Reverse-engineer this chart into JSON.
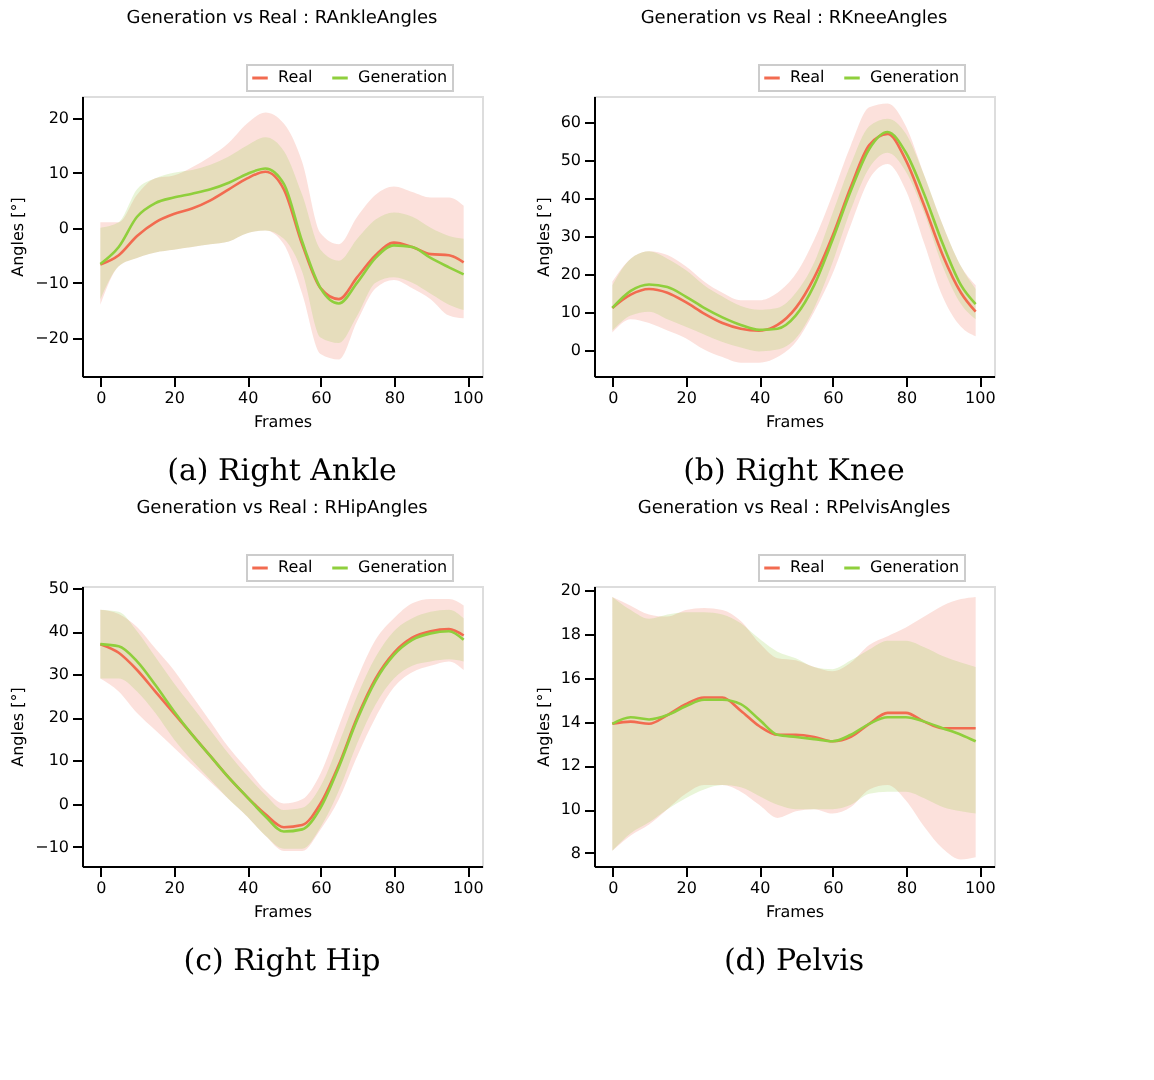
{
  "chart_data": [
    {
      "type": "line",
      "title": "Generation vs Real : RAnkleAngles",
      "xlabel": "Frames",
      "ylabel": "Angles [°]",
      "annotations": [
        "(a) Right Ankle"
      ],
      "legend": "top right",
      "grid": false,
      "x": [
        0,
        5,
        10,
        15,
        20,
        25,
        30,
        35,
        40,
        45,
        50,
        55,
        60,
        65,
        70,
        75,
        80,
        85,
        90,
        95,
        99
      ],
      "xlim": [
        -5,
        104
      ],
      "xticks": [
        0,
        20,
        40,
        60,
        80,
        100
      ],
      "ylim": [
        -27,
        24
      ],
      "yticks": [
        -20,
        -10,
        0,
        10,
        20
      ],
      "series": [
        {
          "name": "Real",
          "color": "#f26b50",
          "values": [
            -6.7,
            -5,
            -1.5,
            1,
            2.5,
            3.5,
            5,
            7,
            9,
            10.2,
            7,
            -3,
            -11,
            -13,
            -9,
            -5,
            -2.7,
            -3.5,
            -4.8,
            -5,
            -6.3
          ],
          "lower": [
            -14,
            -7,
            -5.5,
            -4.5,
            -4,
            -3.5,
            -3,
            -2.5,
            -1,
            -0.5,
            -3,
            -12,
            -23,
            -24,
            -17,
            -11,
            -9.5,
            -11,
            -13,
            -16,
            -16.5
          ],
          "upper": [
            1,
            1,
            6,
            9,
            9.5,
            11,
            13,
            15.5,
            19,
            21,
            19,
            12,
            -1,
            -3,
            2,
            6,
            7.5,
            6.5,
            5.5,
            5.5,
            4
          ]
        },
        {
          "name": "Generation",
          "color": "#8fcf3c",
          "values": [
            -6.6,
            -3.5,
            2,
            4.5,
            5.5,
            6.2,
            7,
            8.2,
            9.8,
            10.8,
            8,
            -2.5,
            -11,
            -13.8,
            -10,
            -5.5,
            -3.2,
            -3.5,
            -5.5,
            -7.2,
            -8.5
          ],
          "lower": [
            -13,
            -7,
            -5.5,
            -4.5,
            -4,
            -3.5,
            -3,
            -2.5,
            -1,
            -0.5,
            -2,
            -8,
            -20,
            -21,
            -16,
            -10,
            -9,
            -10,
            -12,
            -14,
            -15
          ],
          "upper": [
            0,
            1,
            7,
            9,
            10,
            10.5,
            11.5,
            13,
            15,
            16.5,
            14,
            6,
            -4,
            -6,
            -2,
            1.5,
            2.8,
            2,
            0,
            -1.5,
            -2
          ]
        }
      ]
    },
    {
      "type": "line",
      "title": "Generation vs Real : RKneeAngles",
      "xlabel": "Frames",
      "ylabel": "Angles [°]",
      "annotations": [
        "(b) Right Knee"
      ],
      "legend": "top right",
      "grid": false,
      "x": [
        0,
        5,
        10,
        15,
        20,
        25,
        30,
        35,
        40,
        45,
        50,
        55,
        60,
        65,
        70,
        75,
        80,
        85,
        90,
        95,
        99
      ],
      "xlim": [
        -5,
        104
      ],
      "xticks": [
        0,
        20,
        40,
        60,
        80,
        100
      ],
      "ylim": [
        -7,
        67
      ],
      "yticks": [
        0,
        10,
        20,
        30,
        40,
        50,
        60
      ],
      "series": [
        {
          "name": "Real",
          "color": "#f26b50",
          "values": [
            11,
            14.5,
            16,
            15,
            12.5,
            9.5,
            7,
            5.5,
            5,
            6.5,
            11,
            19,
            30,
            43,
            54,
            57,
            50,
            38,
            25,
            15,
            10
          ],
          "lower": [
            4.5,
            8,
            7,
            5,
            3,
            0,
            -2,
            -3.5,
            -3.5,
            -2,
            2,
            10,
            20,
            33,
            45,
            49,
            42,
            28,
            14,
            6,
            3.5
          ],
          "upper": [
            18,
            24,
            26,
            25,
            22,
            18,
            15,
            13,
            13,
            15,
            20,
            29,
            41,
            54,
            64,
            65,
            59,
            46,
            33,
            22,
            17
          ]
        },
        {
          "name": "Generation",
          "color": "#8fcf3c",
          "values": [
            11,
            15.5,
            17.2,
            16.5,
            14,
            11,
            8.5,
            6.5,
            5.2,
            5.5,
            9,
            17,
            29,
            42,
            53,
            57.5,
            52,
            41,
            28,
            17,
            12
          ],
          "lower": [
            5,
            9,
            10,
            8,
            6,
            4,
            2,
            0.5,
            -0.5,
            0,
            3,
            11,
            23,
            37,
            48,
            52,
            47,
            36,
            22,
            12,
            8
          ],
          "upper": [
            17,
            24,
            26,
            24,
            21,
            17,
            14,
            11.5,
            10.5,
            11,
            15,
            23,
            36,
            49,
            59,
            61,
            57,
            46,
            33,
            22,
            16
          ]
        }
      ]
    },
    {
      "type": "line",
      "title": "Generation vs Real : RHipAngles",
      "xlabel": "Frames",
      "ylabel": "Angles [°]",
      "annotations": [
        "(c) Right Hip"
      ],
      "legend": "top right",
      "grid": false,
      "x": [
        0,
        5,
        10,
        15,
        20,
        25,
        30,
        35,
        40,
        45,
        50,
        55,
        60,
        65,
        70,
        75,
        80,
        85,
        90,
        95,
        99
      ],
      "xlim": [
        -5,
        104
      ],
      "xticks": [
        0,
        20,
        40,
        60,
        80,
        100
      ],
      "ylim": [
        -14.5,
        50.5
      ],
      "yticks": [
        -10,
        0,
        10,
        20,
        30,
        40,
        50
      ],
      "series": [
        {
          "name": "Real",
          "color": "#f26b50",
          "values": [
            37,
            35,
            31,
            26,
            21,
            16,
            11,
            6,
            1.5,
            -2.5,
            -5.5,
            -5,
            0,
            9,
            20,
            29,
            35,
            38.5,
            40,
            40.5,
            39
          ],
          "lower": [
            29,
            26,
            21,
            17,
            13,
            9,
            5,
            1,
            -3,
            -7.5,
            -11,
            -11,
            -6,
            1,
            11,
            20,
            27,
            30.5,
            32,
            33,
            31
          ],
          "upper": [
            45,
            44,
            41,
            36,
            31,
            25,
            19,
            13,
            8,
            3,
            0,
            1,
            7,
            18,
            29,
            38,
            43,
            46.5,
            47.5,
            47.5,
            46
          ]
        },
        {
          "name": "Generation",
          "color": "#8fcf3c",
          "values": [
            37,
            36.5,
            33,
            27.5,
            21.5,
            16,
            11,
            6,
            1.5,
            -3,
            -6.5,
            -6,
            -1,
            8.5,
            19.5,
            28.5,
            34.5,
            38,
            39.5,
            40,
            38
          ],
          "lower": [
            29,
            29,
            26,
            21,
            15,
            10,
            5.5,
            1,
            -3,
            -7.5,
            -10.5,
            -10.5,
            -5.5,
            3,
            14,
            23,
            29,
            32,
            33,
            33.5,
            33
          ],
          "upper": [
            45,
            44.5,
            40,
            34,
            28,
            22.5,
            17,
            11.5,
            6.5,
            2,
            -1.5,
            -1,
            4,
            14,
            25,
            34,
            40,
            43,
            44.5,
            45,
            43
          ]
        }
      ]
    },
    {
      "type": "line",
      "title": "Generation vs Real : RPelvisAngles",
      "xlabel": "Frames",
      "ylabel": "Angles [°]",
      "annotations": [
        "(d) Pelvis"
      ],
      "legend": "top right",
      "grid": false,
      "x": [
        0,
        5,
        10,
        15,
        20,
        25,
        30,
        35,
        40,
        45,
        50,
        55,
        60,
        65,
        70,
        75,
        80,
        85,
        90,
        95,
        99
      ],
      "xlim": [
        -5,
        104
      ],
      "xticks": [
        0,
        20,
        40,
        60,
        80,
        100
      ],
      "ylim": [
        7.4,
        20.2
      ],
      "yticks": [
        8,
        10,
        12,
        14,
        16,
        18,
        20
      ],
      "series": [
        {
          "name": "Real",
          "color": "#f26b50",
          "values": [
            13.9,
            14.0,
            13.9,
            14.3,
            14.8,
            15.1,
            15.1,
            14.5,
            13.8,
            13.4,
            13.4,
            13.3,
            13.1,
            13.3,
            13.9,
            14.4,
            14.4,
            14.0,
            13.7,
            13.7,
            13.7
          ],
          "lower": [
            8.1,
            8.8,
            9.3,
            10,
            10.7,
            11.1,
            11.1,
            10.8,
            10.2,
            9.6,
            9.9,
            10,
            9.8,
            10.1,
            10.9,
            11.1,
            10.4,
            9.2,
            8.2,
            7.7,
            7.8
          ],
          "upper": [
            19.7,
            19.3,
            18.9,
            18.8,
            19.1,
            19.2,
            19.1,
            18.6,
            17.6,
            16.9,
            16.8,
            16.5,
            16.3,
            16.7,
            17.5,
            17.9,
            18.3,
            18.8,
            19.3,
            19.6,
            19.7
          ]
        },
        {
          "name": "Generation",
          "color": "#8fcf3c",
          "values": [
            13.9,
            14.2,
            14.1,
            14.3,
            14.7,
            15.0,
            15.0,
            14.8,
            14.1,
            13.4,
            13.3,
            13.2,
            13.1,
            13.4,
            13.9,
            14.2,
            14.2,
            14.0,
            13.7,
            13.4,
            13.1
          ],
          "lower": [
            8.1,
            8.9,
            9.4,
            10,
            10.5,
            10.9,
            11.1,
            11,
            10.6,
            10.2,
            10,
            10,
            10,
            10.2,
            10.7,
            10.8,
            10.8,
            10.5,
            10.1,
            9.9,
            9.8
          ],
          "upper": [
            19.7,
            19.1,
            18.7,
            18.9,
            19.0,
            19.0,
            18.9,
            18.5,
            17.8,
            17.2,
            16.9,
            16.5,
            16.4,
            16.8,
            17.3,
            17.7,
            17.7,
            17.4,
            17,
            16.7,
            16.5
          ]
        }
      ]
    }
  ]
}
